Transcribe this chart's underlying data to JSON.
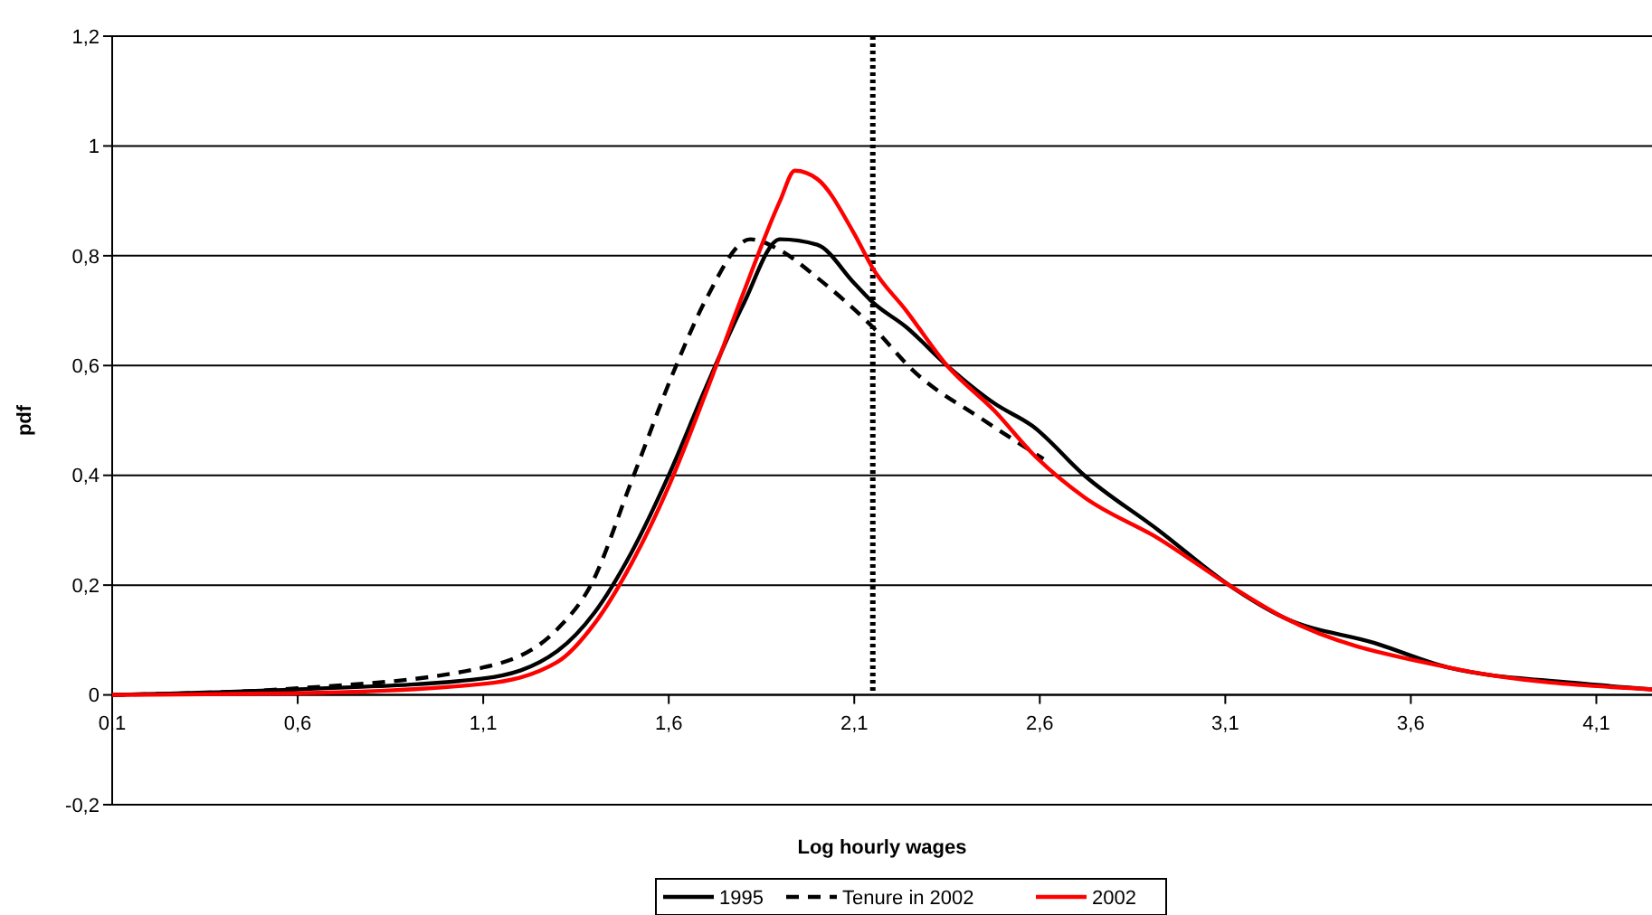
{
  "chart_data": {
    "type": "line",
    "xlabel": "Log hourly wages",
    "ylabel": "pdf",
    "xlim": [
      0.1,
      4.25
    ],
    "ylim": [
      -0.2,
      1.2
    ],
    "xticks": [
      {
        "value": 0.1,
        "label": "0,1"
      },
      {
        "value": 0.6,
        "label": "0,6"
      },
      {
        "value": 1.1,
        "label": "1,1"
      },
      {
        "value": 1.6,
        "label": "1,6"
      },
      {
        "value": 2.1,
        "label": "2,1"
      },
      {
        "value": 2.6,
        "label": "2,6"
      },
      {
        "value": 3.1,
        "label": "3,1"
      },
      {
        "value": 3.6,
        "label": "3,6"
      },
      {
        "value": 4.1,
        "label": "4,1"
      }
    ],
    "yticks": [
      {
        "value": -0.2,
        "label": "-0,2"
      },
      0,
      {
        "value": 0.2,
        "label": "0,2"
      },
      {
        "value": 0.4,
        "label": "0,4"
      },
      {
        "value": 0.6,
        "label": "0,6"
      },
      {
        "value": 0.8,
        "label": "0,8"
      },
      1,
      {
        "value": 1.2,
        "label": "1,2"
      }
    ],
    "grid": "y",
    "legend": "bottom",
    "marker": "none",
    "ref_lines": [
      {
        "axis": "x",
        "value": 2.15,
        "color": "#000000",
        "line_style": "dotted"
      }
    ],
    "series": [
      {
        "name": "1995",
        "color": "#000000",
        "line_style": "solid",
        "x": [
          0.1,
          0.6,
          1.1,
          1.3,
          1.4,
          1.5,
          1.6,
          1.7,
          1.8,
          1.9,
          2.0,
          2.1,
          2.15,
          2.24,
          2.35,
          2.48,
          2.58,
          2.72,
          2.92,
          3.11,
          3.26,
          3.5,
          3.7,
          4.04,
          4.25
        ],
        "values": [
          0,
          0.01,
          0.03,
          0.08,
          0.15,
          0.26,
          0.4,
          0.56,
          0.71,
          0.83,
          0.82,
          0.75,
          0.715,
          0.67,
          0.6,
          0.53,
          0.49,
          0.4,
          0.3,
          0.2,
          0.14,
          0.095,
          0.05,
          0.022,
          0.01
        ]
      },
      {
        "name": "Tenure in 2002",
        "color": "#000000",
        "line_style": "dashed",
        "x": [
          0.1,
          0.6,
          1.1,
          1.3,
          1.39,
          1.5,
          1.62,
          1.7,
          1.82,
          1.9,
          2.0,
          2.15,
          2.26,
          2.45,
          2.61
        ],
        "values": [
          0,
          0.012,
          0.05,
          0.12,
          0.2,
          0.39,
          0.6,
          0.72,
          0.83,
          0.81,
          0.76,
          0.67,
          0.59,
          0.5,
          0.43
        ]
      },
      {
        "name": "2002",
        "color": "#ff0000",
        "line_style": "solid",
        "x": [
          0.1,
          0.6,
          1.1,
          1.3,
          1.4,
          1.5,
          1.6,
          1.7,
          1.8,
          1.9,
          1.94,
          2.0,
          2.1,
          2.15,
          2.24,
          2.35,
          2.48,
          2.58,
          2.72,
          2.92,
          3.11,
          3.26,
          3.7,
          4.25
        ],
        "values": [
          0,
          0.003,
          0.02,
          0.06,
          0.13,
          0.24,
          0.38,
          0.55,
          0.73,
          0.9,
          0.955,
          0.94,
          0.84,
          0.777,
          0.7,
          0.6,
          0.516,
          0.44,
          0.36,
          0.285,
          0.2,
          0.14,
          0.05,
          0.01
        ]
      }
    ]
  }
}
